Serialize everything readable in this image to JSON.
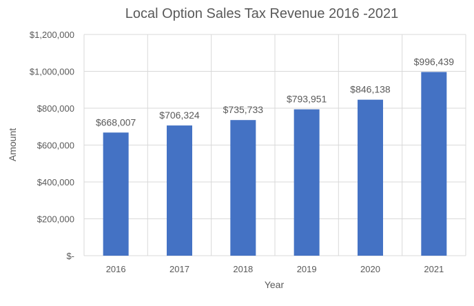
{
  "chart_data": {
    "type": "bar",
    "title": "Local Option Sales Tax Revenue 2016 -2021",
    "xlabel": "Year",
    "ylabel": "Amount",
    "categories": [
      "2016",
      "2017",
      "2018",
      "2019",
      "2020",
      "2021"
    ],
    "values": [
      668007,
      706324,
      735733,
      793951,
      846138,
      996439
    ],
    "data_labels": [
      "$668,007",
      "$706,324",
      "$735,733",
      "$793,951",
      "$846,138",
      "$996,439"
    ],
    "ylim": [
      0,
      1200000
    ],
    "y_ticks": [
      0,
      200000,
      400000,
      600000,
      800000,
      1000000,
      1200000
    ],
    "y_tick_labels": [
      "$-",
      "$200,000",
      "$400,000",
      "$600,000",
      "$800,000",
      "$1,000,000",
      "$1,200,000"
    ],
    "grid": true,
    "bar_color": "#4472C4",
    "grid_color": "#D9D9D9",
    "text_color": "#595959"
  }
}
